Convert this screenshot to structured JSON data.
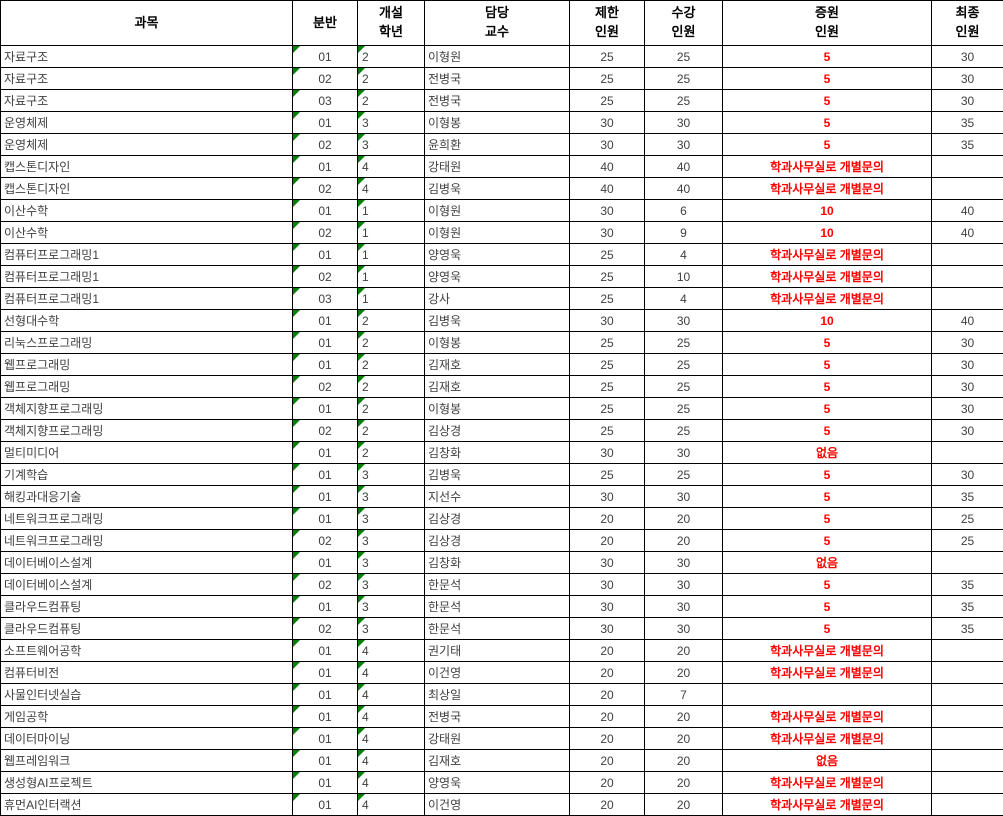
{
  "header": {
    "columns": [
      {
        "key": "subject",
        "label": "과목"
      },
      {
        "key": "section",
        "label": "분반"
      },
      {
        "key": "year",
        "label": "개설\n학년"
      },
      {
        "key": "professor",
        "label": "담당\n교수"
      },
      {
        "key": "limit",
        "label": "제한\n인원"
      },
      {
        "key": "enrolled",
        "label": "수강\n인원"
      },
      {
        "key": "increase",
        "label": "증원\n인원"
      },
      {
        "key": "final",
        "label": "최종\n인원"
      }
    ]
  },
  "rows": [
    [
      "자료구조",
      "01",
      "2",
      "이형원",
      "25",
      "25",
      "5",
      "30"
    ],
    [
      "자료구조",
      "02",
      "2",
      "전병국",
      "25",
      "25",
      "5",
      "30"
    ],
    [
      "자료구조",
      "03",
      "2",
      "전병국",
      "25",
      "25",
      "5",
      "30"
    ],
    [
      "운영체제",
      "01",
      "3",
      "이형봉",
      "30",
      "30",
      "5",
      "35"
    ],
    [
      "운영체제",
      "02",
      "3",
      "윤희환",
      "30",
      "30",
      "5",
      "35"
    ],
    [
      "캡스톤디자인",
      "01",
      "4",
      "강태원",
      "40",
      "40",
      "학과사무실로 개별문의",
      ""
    ],
    [
      "캡스톤디자인",
      "02",
      "4",
      "김병욱",
      "40",
      "40",
      "학과사무실로 개별문의",
      ""
    ],
    [
      "이산수학",
      "01",
      "1",
      "이형원",
      "30",
      "6",
      "10",
      "40"
    ],
    [
      "이산수학",
      "02",
      "1",
      "이형원",
      "30",
      "9",
      "10",
      "40"
    ],
    [
      "컴퓨터프로그래밍1",
      "01",
      "1",
      "양영욱",
      "25",
      "4",
      "학과사무실로 개별문의",
      ""
    ],
    [
      "컴퓨터프로그래밍1",
      "02",
      "1",
      "양영욱",
      "25",
      "10",
      "학과사무실로 개별문의",
      ""
    ],
    [
      "컴퓨터프로그래밍1",
      "03",
      "1",
      "강사",
      "25",
      "4",
      "학과사무실로 개별문의",
      ""
    ],
    [
      "선형대수학",
      "01",
      "2",
      "김병욱",
      "30",
      "30",
      "10",
      "40"
    ],
    [
      "리눅스프로그래밍",
      "01",
      "2",
      "이형봉",
      "25",
      "25",
      "5",
      "30"
    ],
    [
      "웹프로그래밍",
      "01",
      "2",
      "김재호",
      "25",
      "25",
      "5",
      "30"
    ],
    [
      "웹프로그래밍",
      "02",
      "2",
      "김재호",
      "25",
      "25",
      "5",
      "30"
    ],
    [
      "객체지향프로그래밍",
      "01",
      "2",
      "이형봉",
      "25",
      "25",
      "5",
      "30"
    ],
    [
      "객체지향프로그래밍",
      "02",
      "2",
      "김상경",
      "25",
      "25",
      "5",
      "30"
    ],
    [
      "멀티미디어",
      "01",
      "2",
      "김창화",
      "30",
      "30",
      "없음",
      ""
    ],
    [
      "기계학습",
      "01",
      "3",
      "김병욱",
      "25",
      "25",
      "5",
      "30"
    ],
    [
      "해킹과대응기술",
      "01",
      "3",
      "지선수",
      "30",
      "30",
      "5",
      "35"
    ],
    [
      "네트워크프로그래밍",
      "01",
      "3",
      "김상경",
      "20",
      "20",
      "5",
      "25"
    ],
    [
      "네트워크프로그래밍",
      "02",
      "3",
      "김상경",
      "20",
      "20",
      "5",
      "25"
    ],
    [
      "데이터베이스설계",
      "01",
      "3",
      "김창화",
      "30",
      "30",
      "없음",
      ""
    ],
    [
      "데이터베이스설계",
      "02",
      "3",
      "한문석",
      "30",
      "30",
      "5",
      "35"
    ],
    [
      "클라우드컴퓨팅",
      "01",
      "3",
      "한문석",
      "30",
      "30",
      "5",
      "35"
    ],
    [
      "클라우드컴퓨팅",
      "02",
      "3",
      "한문석",
      "30",
      "30",
      "5",
      "35"
    ],
    [
      "소프트웨어공학",
      "01",
      "4",
      "권기태",
      "20",
      "20",
      "학과사무실로 개별문의",
      ""
    ],
    [
      "컴퓨터비전",
      "01",
      "4",
      "이건영",
      "20",
      "20",
      "학과사무실로 개별문의",
      ""
    ],
    [
      "사물인터넷실습",
      "01",
      "4",
      "최상일",
      "20",
      "7",
      "",
      ""
    ],
    [
      "게임공학",
      "01",
      "4",
      "전병국",
      "20",
      "20",
      "학과사무실로 개별문의",
      ""
    ],
    [
      "데이터마이닝",
      "01",
      "4",
      "강태원",
      "20",
      "20",
      "학과사무실로 개별문의",
      ""
    ],
    [
      "웹프레임워크",
      "01",
      "4",
      "김재호",
      "20",
      "20",
      "없음",
      ""
    ],
    [
      "생성형AI프로젝트",
      "01",
      "4",
      "양영욱",
      "20",
      "20",
      "학과사무실로 개별문의",
      ""
    ],
    [
      "휴먼AI인터랙션",
      "01",
      "4",
      "이건영",
      "20",
      "20",
      "학과사무실로 개별문의",
      ""
    ]
  ],
  "colors": {
    "increase_text": "#ff0000",
    "text_flag_triangle": "#008000",
    "body_text": "#3f3f3f",
    "header_text": "#000000",
    "grid_border": "#000000"
  }
}
